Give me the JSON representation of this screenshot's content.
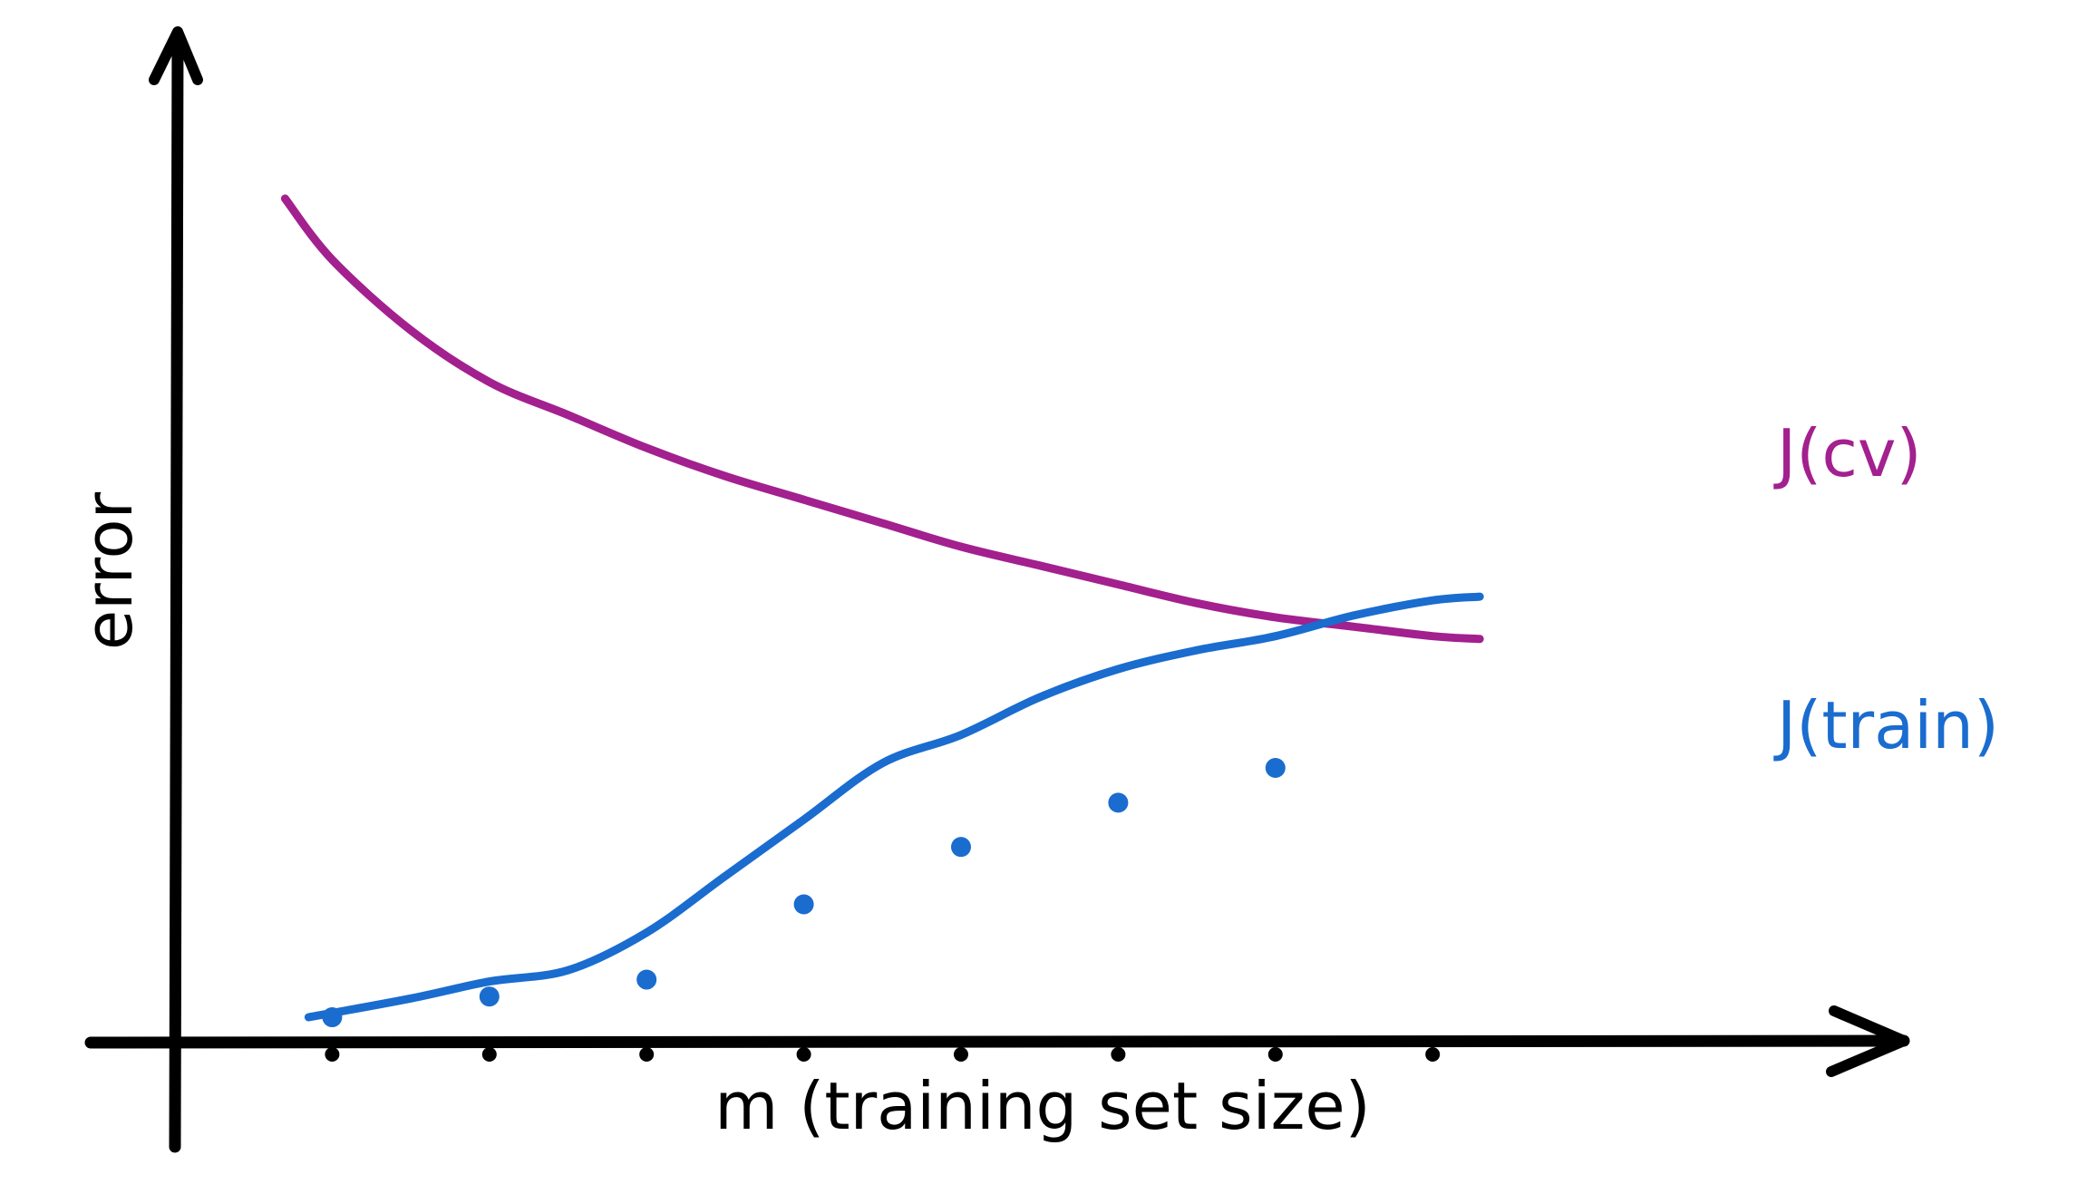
{
  "chart_data": {
    "type": "line",
    "title": "",
    "xlabel": "m (training set size)",
    "ylabel": "error",
    "grid": false,
    "legend": "inline labels at line ends",
    "xlim": [
      0,
      10
    ],
    "ylim": [
      0,
      10
    ],
    "x_ticks": [
      1,
      2,
      3,
      4,
      5,
      6,
      7,
      8
    ],
    "series": [
      {
        "name": "J(cv)",
        "kind": "curve",
        "color": "#a3208f",
        "x": [
          0.7,
          1.0,
          1.5,
          2.0,
          2.5,
          3.0,
          3.5,
          4.0,
          4.5,
          5.0,
          5.5,
          6.0,
          6.5,
          7.0,
          7.5,
          8.0,
          8.3
        ],
        "values": [
          8.95,
          8.3,
          7.55,
          7.0,
          6.65,
          6.3,
          6.0,
          5.75,
          5.5,
          5.25,
          5.05,
          4.85,
          4.65,
          4.5,
          4.4,
          4.3,
          4.27
        ]
      },
      {
        "name": "J(train)",
        "kind": "curve",
        "color": "#1a6ccf",
        "x": [
          0.85,
          1.5,
          2.0,
          2.5,
          3.0,
          3.5,
          4.0,
          4.5,
          5.0,
          5.5,
          6.0,
          6.5,
          7.0,
          7.5,
          8.0,
          8.3
        ],
        "values": [
          0.25,
          0.45,
          0.63,
          0.75,
          1.15,
          1.75,
          2.35,
          2.95,
          3.25,
          3.65,
          3.95,
          4.15,
          4.3,
          4.52,
          4.68,
          4.72
        ]
      },
      {
        "name": "",
        "kind": "points",
        "color": "#1a6ccf",
        "x": [
          1.0,
          2.0,
          3.0,
          4.0,
          5.0,
          6.0,
          7.0
        ],
        "values": [
          0.25,
          0.47,
          0.65,
          1.45,
          2.06,
          2.53,
          2.9
        ]
      }
    ],
    "labels": {
      "cv": "J(cv)",
      "train": "J(train)"
    },
    "colors": {
      "axis": "#000000",
      "cv": "#a3208f",
      "train": "#1a6ccf"
    }
  }
}
